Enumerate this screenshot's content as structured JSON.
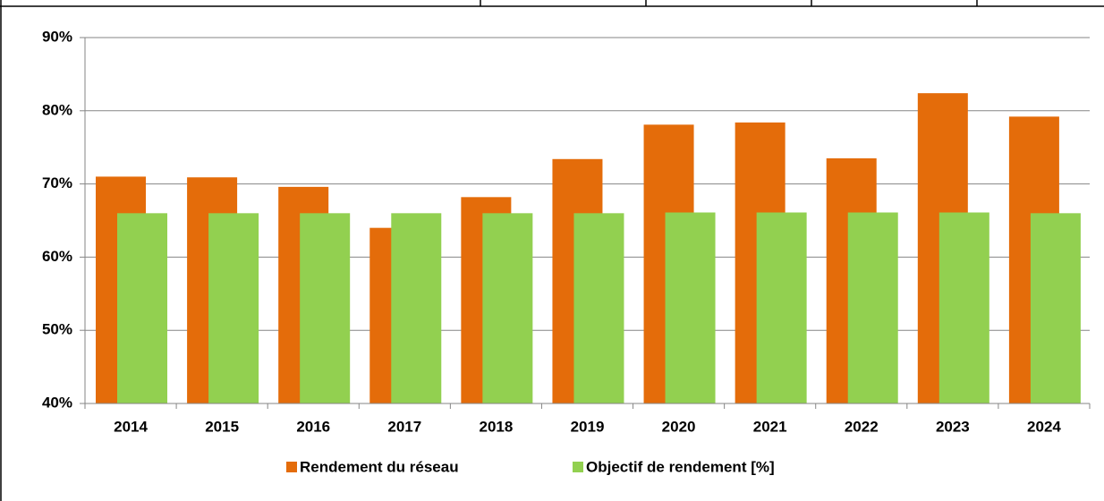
{
  "chart_data": {
    "type": "bar",
    "categories": [
      "2014",
      "2015",
      "2016",
      "2017",
      "2018",
      "2019",
      "2020",
      "2021",
      "2022",
      "2023",
      "2024"
    ],
    "series": [
      {
        "name": "Rendement du réseau",
        "color": "#e46c0a",
        "values": [
          71.0,
          70.9,
          69.6,
          64.0,
          68.2,
          73.4,
          78.1,
          78.4,
          73.5,
          82.4,
          79.2
        ]
      },
      {
        "name": "Objectif de rendement [%]",
        "color": "#92d050",
        "values": [
          66.0,
          66.0,
          66.0,
          66.0,
          66.0,
          66.0,
          66.1,
          66.1,
          66.1,
          66.1,
          66.0
        ]
      }
    ],
    "ylim": [
      40,
      90
    ],
    "yticks": [
      {
        "value": 40,
        "label": "40%"
      },
      {
        "value": 50,
        "label": "50%"
      },
      {
        "value": 60,
        "label": "60%"
      },
      {
        "value": 70,
        "label": "70%"
      },
      {
        "value": 80,
        "label": "80%"
      },
      {
        "value": 90,
        "label": "90%"
      }
    ],
    "grid": true,
    "legend": "bottom"
  }
}
